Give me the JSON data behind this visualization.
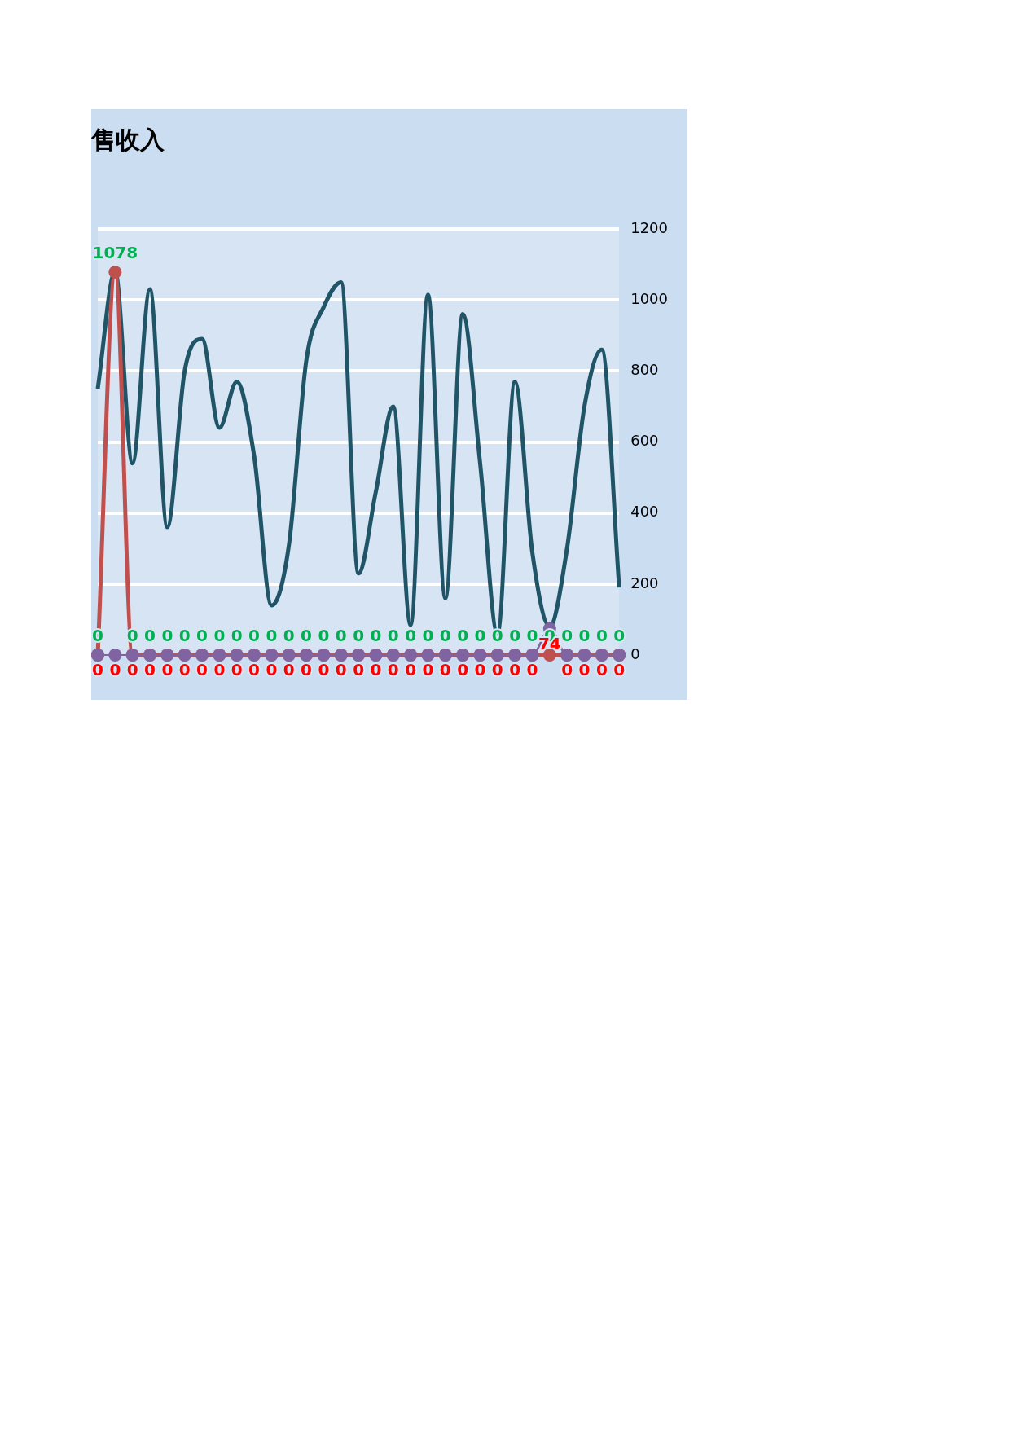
{
  "chart_data": {
    "type": "line",
    "title": "售收入",
    "categories": [
      null,
      null,
      null,
      null,
      null,
      null,
      null,
      null,
      null,
      null,
      null,
      null,
      null,
      null,
      null,
      null,
      null,
      null,
      null,
      null,
      null,
      null,
      null,
      null,
      null,
      null,
      null,
      null,
      null,
      null,
      null
    ],
    "series": [
      {
        "color": "#1f5566",
        "marker": "none",
        "values": [
          750,
          1080,
          540,
          1030,
          360,
          800,
          890,
          640,
          770,
          560,
          140,
          310,
          830,
          980,
          1050,
          230,
          460,
          700,
          85,
          1015,
          160,
          960,
          540,
          60,
          770,
          290,
          80,
          300,
          700,
          860,
          190
        ]
      },
      {
        "color": "#c0504d",
        "marker": "circle",
        "data_labels": true,
        "values": [
          0,
          1078,
          0,
          0,
          0,
          0,
          0,
          0,
          0,
          0,
          0,
          0,
          0,
          0,
          0,
          0,
          0,
          0,
          0,
          0,
          0,
          0,
          0,
          0,
          0,
          0,
          0,
          0,
          0,
          0,
          0
        ]
      },
      {
        "color": "#8064a2",
        "marker": "circle",
        "data_labels": true,
        "values": [
          0,
          0,
          0,
          0,
          0,
          0,
          0,
          0,
          0,
          0,
          0,
          0,
          0,
          0,
          0,
          0,
          0,
          0,
          0,
          0,
          0,
          0,
          0,
          0,
          0,
          0,
          74,
          0,
          0,
          0,
          0
        ]
      }
    ],
    "ylim": [
      0,
      1200
    ],
    "yticks": [
      0,
      200,
      400,
      600,
      800,
      1000,
      1200
    ],
    "grid": "y",
    "legend": false,
    "line_style": "solid"
  }
}
